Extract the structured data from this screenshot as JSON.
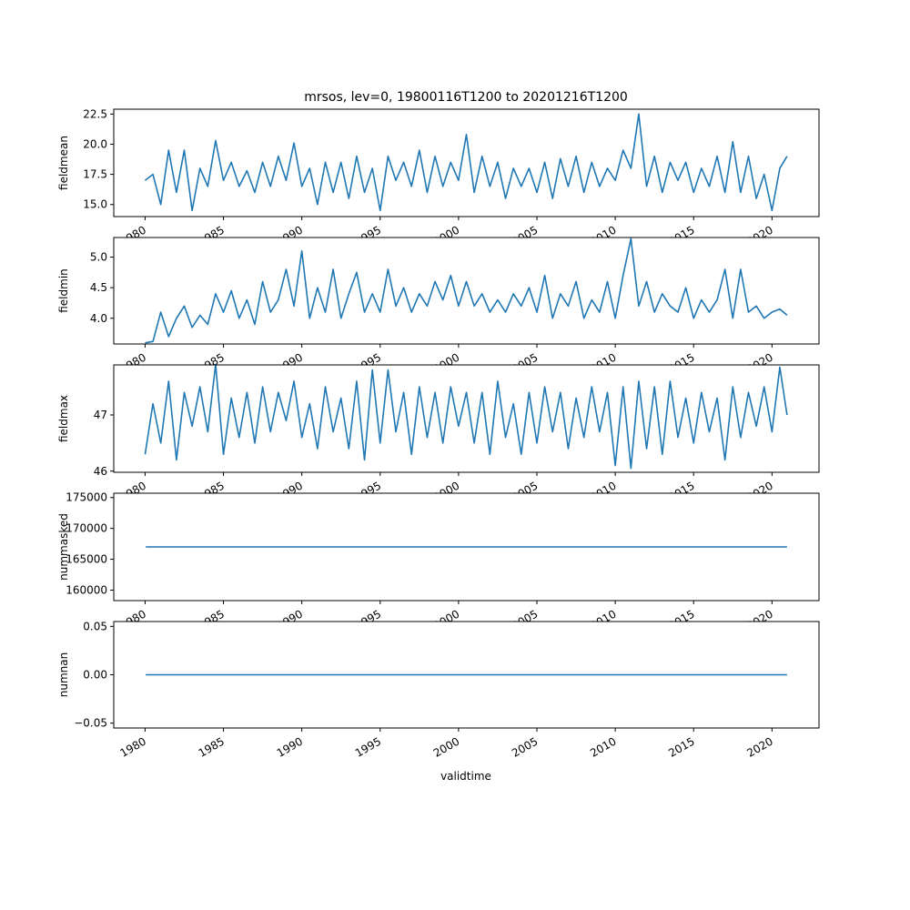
{
  "title": "mrsos, lev=0, 19800116T1200 to 20201216T1200",
  "xlabel": "validtime",
  "line_color": "#1f77b4",
  "chart_data": {
    "type": "line",
    "title": "mrsos, lev=0, 19800116T1200 to 20201216T1200",
    "xlabel": "validtime",
    "x_range": [
      1980.04,
      2020.96
    ],
    "xlim": [
      1978.0,
      2023.0
    ],
    "x_ticks": [
      "1980",
      "1985",
      "1990",
      "1995",
      "2000",
      "2005",
      "2010",
      "2015",
      "2020"
    ],
    "x_tick_values": [
      1980,
      1985,
      1990,
      1995,
      2000,
      2005,
      2010,
      2015,
      2020
    ],
    "grid": false,
    "panels": [
      {
        "name": "fieldmean",
        "ylabel": "fieldmean",
        "ylim": [
          14.0,
          22.9
        ],
        "y_ticks": [
          15.0,
          17.5,
          20.0,
          22.5
        ],
        "y_tick_labels": [
          "15.0",
          "17.5",
          "20.0",
          "22.5"
        ],
        "series": [
          {
            "x": [
              1980.0,
              1980.5,
              1981.0,
              1981.5,
              1982.0,
              1982.5,
              1983.0,
              1983.5,
              1984.0,
              1984.5,
              1985.0,
              1985.5,
              1986.0,
              1986.5,
              1987.0,
              1987.5,
              1988.0,
              1988.5,
              1989.0,
              1989.5,
              1990.0,
              1990.5,
              1991.0,
              1991.5,
              1992.0,
              1992.5,
              1993.0,
              1993.5,
              1994.0,
              1994.5,
              1995.0,
              1995.5,
              1996.0,
              1996.5,
              1997.0,
              1997.5,
              1998.0,
              1998.5,
              1999.0,
              1999.5,
              2000.0,
              2000.5,
              2001.0,
              2001.5,
              2002.0,
              2002.5,
              2003.0,
              2003.5,
              2004.0,
              2004.5,
              2005.0,
              2005.5,
              2006.0,
              2006.5,
              2007.0,
              2007.5,
              2008.0,
              2008.5,
              2009.0,
              2009.5,
              2010.0,
              2010.5,
              2011.0,
              2011.5,
              2012.0,
              2012.5,
              2013.0,
              2013.5,
              2014.0,
              2014.5,
              2015.0,
              2015.5,
              2016.0,
              2016.5,
              2017.0,
              2017.5,
              2018.0,
              2018.5,
              2019.0,
              2019.5,
              2020.0,
              2020.5,
              2020.96
            ],
            "values": [
              17.0,
              17.5,
              15.0,
              19.5,
              16.0,
              19.5,
              14.5,
              18.0,
              16.5,
              20.3,
              17.0,
              18.5,
              16.5,
              17.8,
              16.0,
              18.5,
              16.5,
              19.0,
              17.0,
              20.1,
              16.5,
              18.0,
              15.0,
              18.5,
              16.0,
              18.5,
              15.5,
              19.0,
              16.0,
              18.0,
              14.5,
              19.0,
              17.0,
              18.5,
              16.5,
              19.5,
              16.0,
              19.0,
              16.5,
              18.5,
              17.0,
              20.8,
              16.0,
              19.0,
              16.5,
              18.5,
              15.5,
              18.0,
              16.5,
              18.0,
              16.0,
              18.5,
              15.5,
              18.8,
              16.5,
              19.0,
              16.0,
              18.5,
              16.5,
              18.0,
              17.0,
              19.5,
              18.0,
              22.5,
              16.5,
              19.0,
              16.0,
              18.5,
              17.0,
              18.5,
              16.0,
              18.0,
              16.5,
              19.0,
              16.0,
              20.2,
              16.0,
              19.0,
              15.5,
              17.5,
              14.5,
              18.0,
              19.0
            ]
          }
        ]
      },
      {
        "name": "fieldmin",
        "ylabel": "fieldmin",
        "ylim": [
          3.58,
          5.32
        ],
        "y_ticks": [
          4.0,
          4.5,
          5.0
        ],
        "y_tick_labels": [
          "4.0",
          "4.5",
          "5.0"
        ],
        "series": [
          {
            "x": [
              1980.0,
              1980.5,
              1981.0,
              1981.5,
              1982.0,
              1982.5,
              1983.0,
              1983.5,
              1984.0,
              1984.5,
              1985.0,
              1985.5,
              1986.0,
              1986.5,
              1987.0,
              1987.5,
              1988.0,
              1988.5,
              1989.0,
              1989.5,
              1990.0,
              1990.5,
              1991.0,
              1991.5,
              1992.0,
              1992.5,
              1993.0,
              1993.5,
              1994.0,
              1994.5,
              1995.0,
              1995.5,
              1996.0,
              1996.5,
              1997.0,
              1997.5,
              1998.0,
              1998.5,
              1999.0,
              1999.5,
              2000.0,
              2000.5,
              2001.0,
              2001.5,
              2002.0,
              2002.5,
              2003.0,
              2003.5,
              2004.0,
              2004.5,
              2005.0,
              2005.5,
              2006.0,
              2006.5,
              2007.0,
              2007.5,
              2008.0,
              2008.5,
              2009.0,
              2009.5,
              2010.0,
              2010.5,
              2011.0,
              2011.5,
              2012.0,
              2012.5,
              2013.0,
              2013.5,
              2014.0,
              2014.5,
              2015.0,
              2015.5,
              2016.0,
              2016.5,
              2017.0,
              2017.5,
              2018.0,
              2018.5,
              2019.0,
              2019.5,
              2020.0,
              2020.5,
              2020.96
            ],
            "values": [
              3.6,
              3.62,
              4.1,
              3.7,
              4.0,
              4.2,
              3.85,
              4.05,
              3.9,
              4.4,
              4.1,
              4.45,
              4.0,
              4.3,
              3.9,
              4.6,
              4.1,
              4.3,
              4.8,
              4.2,
              5.1,
              4.0,
              4.5,
              4.1,
              4.8,
              4.0,
              4.4,
              4.75,
              4.1,
              4.4,
              4.1,
              4.8,
              4.2,
              4.5,
              4.1,
              4.4,
              4.2,
              4.6,
              4.3,
              4.7,
              4.2,
              4.6,
              4.2,
              4.4,
              4.1,
              4.3,
              4.1,
              4.4,
              4.2,
              4.5,
              4.1,
              4.7,
              4.0,
              4.4,
              4.2,
              4.6,
              4.0,
              4.3,
              4.1,
              4.6,
              4.0,
              4.7,
              5.3,
              4.2,
              4.6,
              4.1,
              4.4,
              4.2,
              4.1,
              4.5,
              4.0,
              4.3,
              4.1,
              4.3,
              4.8,
              4.0,
              4.8,
              4.1,
              4.2,
              4.0,
              4.1,
              4.15,
              4.05
            ]
          }
        ]
      },
      {
        "name": "fieldmax",
        "ylabel": "fieldmax",
        "ylim": [
          45.98,
          47.89
        ],
        "y_ticks": [
          46,
          47
        ],
        "y_tick_labels": [
          "46",
          "47"
        ],
        "series": [
          {
            "x": [
              1980.0,
              1980.5,
              1981.0,
              1981.5,
              1982.0,
              1982.5,
              1983.0,
              1983.5,
              1984.0,
              1984.5,
              1985.0,
              1985.5,
              1986.0,
              1986.5,
              1987.0,
              1987.5,
              1988.0,
              1988.5,
              1989.0,
              1989.5,
              1990.0,
              1990.5,
              1991.0,
              1991.5,
              1992.0,
              1992.5,
              1993.0,
              1993.5,
              1994.0,
              1994.5,
              1995.0,
              1995.5,
              1996.0,
              1996.5,
              1997.0,
              1997.5,
              1998.0,
              1998.5,
              1999.0,
              1999.5,
              2000.0,
              2000.5,
              2001.0,
              2001.5,
              2002.0,
              2002.5,
              2003.0,
              2003.5,
              2004.0,
              2004.5,
              2005.0,
              2005.5,
              2006.0,
              2006.5,
              2007.0,
              2007.5,
              2008.0,
              2008.5,
              2009.0,
              2009.5,
              2010.0,
              2010.5,
              2011.0,
              2011.5,
              2012.0,
              2012.5,
              2013.0,
              2013.5,
              2014.0,
              2014.5,
              2015.0,
              2015.5,
              2016.0,
              2016.5,
              2017.0,
              2017.5,
              2018.0,
              2018.5,
              2019.0,
              2019.5,
              2020.0,
              2020.5,
              2020.96
            ],
            "values": [
              46.3,
              47.2,
              46.5,
              47.6,
              46.2,
              47.4,
              46.8,
              47.5,
              46.7,
              47.9,
              46.3,
              47.3,
              46.6,
              47.4,
              46.5,
              47.5,
              46.7,
              47.4,
              46.9,
              47.6,
              46.6,
              47.2,
              46.4,
              47.5,
              46.7,
              47.3,
              46.4,
              47.6,
              46.2,
              47.8,
              46.5,
              47.8,
              46.7,
              47.4,
              46.3,
              47.5,
              46.6,
              47.4,
              46.5,
              47.5,
              46.8,
              47.4,
              46.5,
              47.4,
              46.3,
              47.6,
              46.6,
              47.2,
              46.3,
              47.4,
              46.5,
              47.5,
              46.7,
              47.4,
              46.4,
              47.3,
              46.6,
              47.5,
              46.7,
              47.4,
              46.1,
              47.5,
              46.05,
              47.6,
              46.4,
              47.5,
              46.3,
              47.6,
              46.6,
              47.3,
              46.5,
              47.4,
              46.7,
              47.3,
              46.2,
              47.5,
              46.6,
              47.4,
              46.8,
              47.5,
              46.7,
              47.85,
              47.0
            ]
          }
        ]
      },
      {
        "name": "nummasked",
        "ylabel": "nummasked",
        "ylim": [
          158300,
          175700
        ],
        "y_ticks": [
          160000,
          165000,
          170000,
          175000
        ],
        "y_tick_labels": [
          "160000",
          "165000",
          "170000",
          "175000"
        ],
        "series": [
          {
            "x": [
              1980.04,
              2020.96
            ],
            "values": [
              167000,
              167000
            ]
          }
        ]
      },
      {
        "name": "numnan",
        "ylabel": "numnan",
        "ylim": [
          -0.055,
          0.055
        ],
        "y_ticks": [
          -0.05,
          0.0,
          0.05
        ],
        "y_tick_labels": [
          "−0.05",
          "0.00",
          "0.05"
        ],
        "series": [
          {
            "x": [
              1980.04,
              2020.96
            ],
            "values": [
              0.0,
              0.0
            ]
          }
        ]
      }
    ]
  }
}
